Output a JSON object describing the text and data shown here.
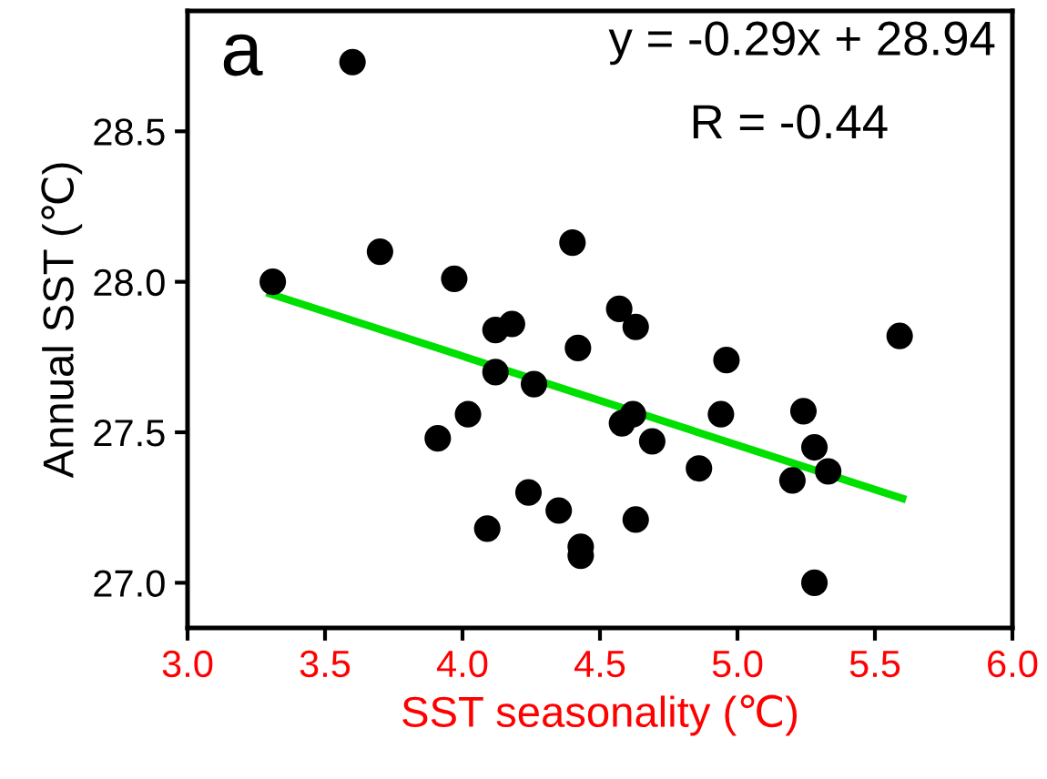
{
  "chart_data": {
    "type": "scatter",
    "xlabel": "SST seasonality (℃)",
    "ylabel": "Annual SST (℃)",
    "annotations": [
      "a",
      "y = -0.29x + 28.94",
      "R = -0.44"
    ],
    "xlim": [
      3.0,
      6.0
    ],
    "xticks": [
      {
        "value": 3.0,
        "label": "3.0"
      },
      {
        "value": 3.5,
        "label": "3.5"
      },
      {
        "value": 4.0,
        "label": "4.0"
      },
      {
        "value": 4.5,
        "label": "4.5"
      },
      {
        "value": 5.0,
        "label": "5.0"
      },
      {
        "value": 5.5,
        "label": "5.5"
      },
      {
        "value": 6.0,
        "label": "6.0"
      }
    ],
    "ylim": [
      26.85,
      28.9
    ],
    "yticks": [
      {
        "value": 27.0,
        "label": "27.0"
      },
      {
        "value": 27.5,
        "label": "27.5"
      },
      {
        "value": 28.0,
        "label": "28.0"
      },
      {
        "value": 28.5,
        "label": "28.5"
      }
    ],
    "grid": false,
    "legend": false,
    "series": [
      {
        "marker": "circle",
        "color": "#000000",
        "x": [
          3.6,
          3.31,
          3.7,
          3.97,
          4.4,
          4.57,
          4.63,
          4.12,
          4.18,
          4.42,
          5.59,
          4.96,
          4.12,
          4.26,
          4.02,
          3.91,
          4.58,
          4.62,
          4.69,
          4.94,
          5.24,
          5.28,
          5.33,
          5.2,
          4.86,
          4.24,
          4.35,
          4.09,
          4.63,
          4.43,
          4.43,
          5.28
        ],
        "values": [
          28.73,
          28.0,
          28.1,
          28.01,
          28.13,
          27.91,
          27.85,
          27.84,
          27.86,
          27.78,
          27.82,
          27.74,
          27.7,
          27.66,
          27.56,
          27.48,
          27.53,
          27.56,
          27.47,
          27.56,
          27.57,
          27.45,
          27.37,
          27.34,
          27.38,
          27.3,
          27.24,
          27.18,
          27.21,
          27.12,
          27.09,
          27.0
        ]
      },
      {
        "type": "line",
        "color": "#00e000",
        "x": [
          3.3,
          5.6
        ],
        "values": [
          27.96,
          27.28
        ]
      }
    ]
  }
}
